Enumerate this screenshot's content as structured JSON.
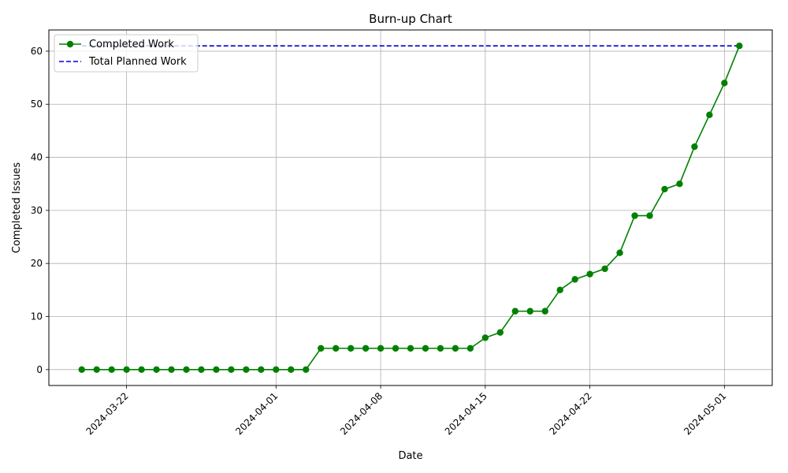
{
  "chart_data": {
    "type": "line",
    "title": "Burn-up Chart",
    "xlabel": "Date",
    "ylabel": "Completed Issues",
    "x": [
      "2024-03-19",
      "2024-03-20",
      "2024-03-21",
      "2024-03-22",
      "2024-03-23",
      "2024-03-24",
      "2024-03-25",
      "2024-03-26",
      "2024-03-27",
      "2024-03-28",
      "2024-03-29",
      "2024-03-30",
      "2024-03-31",
      "2024-04-01",
      "2024-04-02",
      "2024-04-03",
      "2024-04-04",
      "2024-04-05",
      "2024-04-06",
      "2024-04-07",
      "2024-04-08",
      "2024-04-09",
      "2024-04-10",
      "2024-04-11",
      "2024-04-12",
      "2024-04-13",
      "2024-04-14",
      "2024-04-15",
      "2024-04-16",
      "2024-04-17",
      "2024-04-18",
      "2024-04-19",
      "2024-04-20",
      "2024-04-21",
      "2024-04-22",
      "2024-04-23",
      "2024-04-24",
      "2024-04-25",
      "2024-04-26",
      "2024-04-27",
      "2024-04-28",
      "2024-04-29",
      "2024-04-30",
      "2024-05-01",
      "2024-05-02"
    ],
    "series": [
      {
        "name": "Completed Work",
        "color": "#008000",
        "style": "solid-with-markers",
        "values": [
          0,
          0,
          0,
          0,
          0,
          0,
          0,
          0,
          0,
          0,
          0,
          0,
          0,
          0,
          0,
          0,
          4,
          4,
          4,
          4,
          4,
          4,
          4,
          4,
          4,
          4,
          4,
          6,
          7,
          11,
          11,
          11,
          15,
          17,
          18,
          19,
          22,
          29,
          29,
          34,
          35,
          42,
          48,
          54,
          61
        ]
      },
      {
        "name": "Total Planned Work",
        "color": "#0000cc",
        "style": "dashed",
        "values": [
          61,
          61,
          61,
          61,
          61,
          61,
          61,
          61,
          61,
          61,
          61,
          61,
          61,
          61,
          61,
          61,
          61,
          61,
          61,
          61,
          61,
          61,
          61,
          61,
          61,
          61,
          61,
          61,
          61,
          61,
          61,
          61,
          61,
          61,
          61,
          61,
          61,
          61,
          61,
          61,
          61,
          61,
          61,
          61,
          61
        ]
      }
    ],
    "x_ticks": [
      "2024-03-22",
      "2024-04-01",
      "2024-04-08",
      "2024-04-15",
      "2024-04-22",
      "2024-05-01"
    ],
    "y_ticks": [
      0,
      10,
      20,
      30,
      40,
      50,
      60
    ],
    "ylim": [
      -3,
      64
    ],
    "xlim": [
      "2024-03-16 19:12",
      "2024-05-04 04:48"
    ],
    "grid": true,
    "legend_position": "top-left"
  }
}
